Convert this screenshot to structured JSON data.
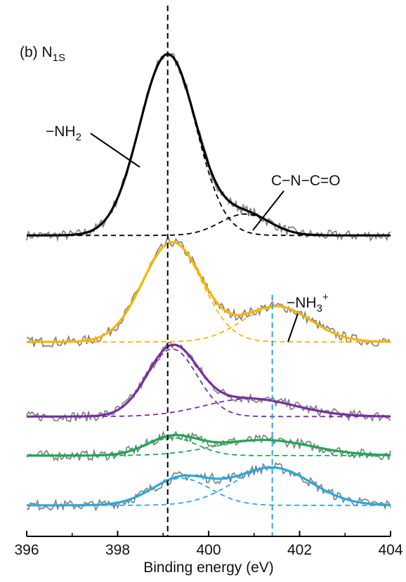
{
  "chart_data": {
    "type": "line",
    "title": "(b) N",
    "title_subscript": "1S",
    "xlabel": "Binding energy (eV)",
    "ylabel": "",
    "xlim": [
      396,
      404
    ],
    "xticks": [
      "396",
      "398",
      "400",
      "402",
      "404"
    ],
    "y_ticks_shown": false,
    "grid": false,
    "legend": "none",
    "reference_lines": [
      {
        "x": 399.1,
        "style": "dashed",
        "color": "#000000"
      },
      {
        "x": 401.4,
        "style": "dashed",
        "color": "#29a8e0"
      }
    ],
    "annotations": [
      {
        "text": "−NH",
        "sub": "2",
        "sup": ""
      },
      {
        "text": "C−N−C=O",
        "sub": "",
        "sup": ""
      },
      {
        "text": "−NH",
        "sub": "3",
        "sup": "+"
      }
    ],
    "series": [
      {
        "color": "#000000",
        "offset": 4.0,
        "components": [
          {
            "center": 399.1,
            "sigma": 0.62,
            "amplitude": 2.55
          },
          {
            "center": 400.8,
            "sigma": 0.55,
            "amplitude": 0.3
          }
        ]
      },
      {
        "color": "#f7b500",
        "offset": 2.5,
        "components": [
          {
            "center": 399.2,
            "sigma": 0.65,
            "amplitude": 1.4
          },
          {
            "center": 401.5,
            "sigma": 0.75,
            "amplitude": 0.5
          }
        ]
      },
      {
        "color": "#7a2ea0",
        "offset": 1.45,
        "components": [
          {
            "center": 399.2,
            "sigma": 0.55,
            "amplitude": 0.95
          },
          {
            "center": 400.9,
            "sigma": 1.0,
            "amplitude": 0.25
          }
        ]
      },
      {
        "color": "#1aaa50",
        "offset": 0.9,
        "components": [
          {
            "center": 399.2,
            "sigma": 0.55,
            "amplitude": 0.25
          },
          {
            "center": 401.2,
            "sigma": 1.05,
            "amplitude": 0.22
          }
        ]
      },
      {
        "color": "#29a8e0",
        "offset": 0.2,
        "components": [
          {
            "center": 399.4,
            "sigma": 0.65,
            "amplitude": 0.38
          },
          {
            "center": 401.4,
            "sigma": 0.85,
            "amplitude": 0.53
          }
        ]
      }
    ],
    "raw_data_color": "#808080"
  }
}
